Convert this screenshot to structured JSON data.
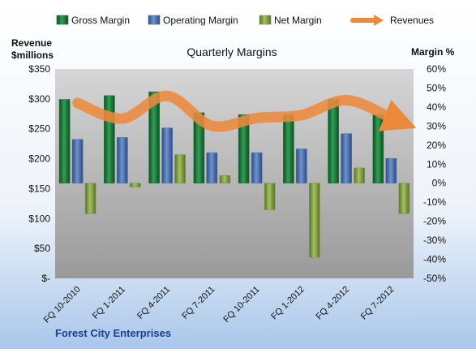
{
  "colors": {
    "gross": "#1e7a3c",
    "operating": "#4a6fb0",
    "net": "#7e9b3e",
    "revenues": "#ec8a3c",
    "plot_top": "#d6d6d6",
    "plot_bottom": "#9a9a9a",
    "bg_top": "#ffffff",
    "bg_bottom": "#a9c7ea",
    "footer_text": "#1a3f8f"
  },
  "chart_data": {
    "type": "bar",
    "title": "Quarterly Margins",
    "left_axis_title_line1": "Revenue",
    "left_axis_title_line2": "$millions",
    "right_axis_title": "Margin %",
    "footer": "Forest City Enterprises",
    "categories": [
      "FQ 10-2010",
      "FQ 1-2011",
      "FQ 4-2011",
      "FQ 7-2011",
      "FQ 10-2011",
      "FQ 1-2012",
      "FQ 4-2012",
      "FQ 7-2012"
    ],
    "left_axis": {
      "min": 0,
      "max": 350,
      "step": 50,
      "tick_labels": [
        "$-",
        "$50",
        "$100",
        "$150",
        "$200",
        "$250",
        "$300",
        "$350"
      ]
    },
    "right_axis": {
      "min": -50,
      "max": 60,
      "step": 10,
      "tick_labels": [
        "-50%",
        "-40%",
        "-30%",
        "-20%",
        "-10%",
        "0%",
        "10%",
        "20%",
        "30%",
        "40%",
        "50%",
        "60%"
      ]
    },
    "bar_series": [
      {
        "name": "Gross Margin",
        "color_key": "gross",
        "values": [
          44,
          46,
          48,
          37,
          36,
          36,
          44,
          36
        ]
      },
      {
        "name": "Operating Margin",
        "color_key": "operating",
        "values": [
          23,
          24,
          29,
          16,
          16,
          18,
          26,
          13
        ]
      },
      {
        "name": "Net Margin",
        "color_key": "net",
        "values": [
          -16,
          -2,
          15,
          4,
          -14,
          -39,
          8,
          -16
        ]
      }
    ],
    "line_series": {
      "name": "Revenues",
      "axis": "left",
      "color_key": "revenues",
      "values": [
        293,
        267,
        305,
        255,
        268,
        273,
        298,
        268
      ]
    },
    "legend_position": "top",
    "grid": false
  }
}
